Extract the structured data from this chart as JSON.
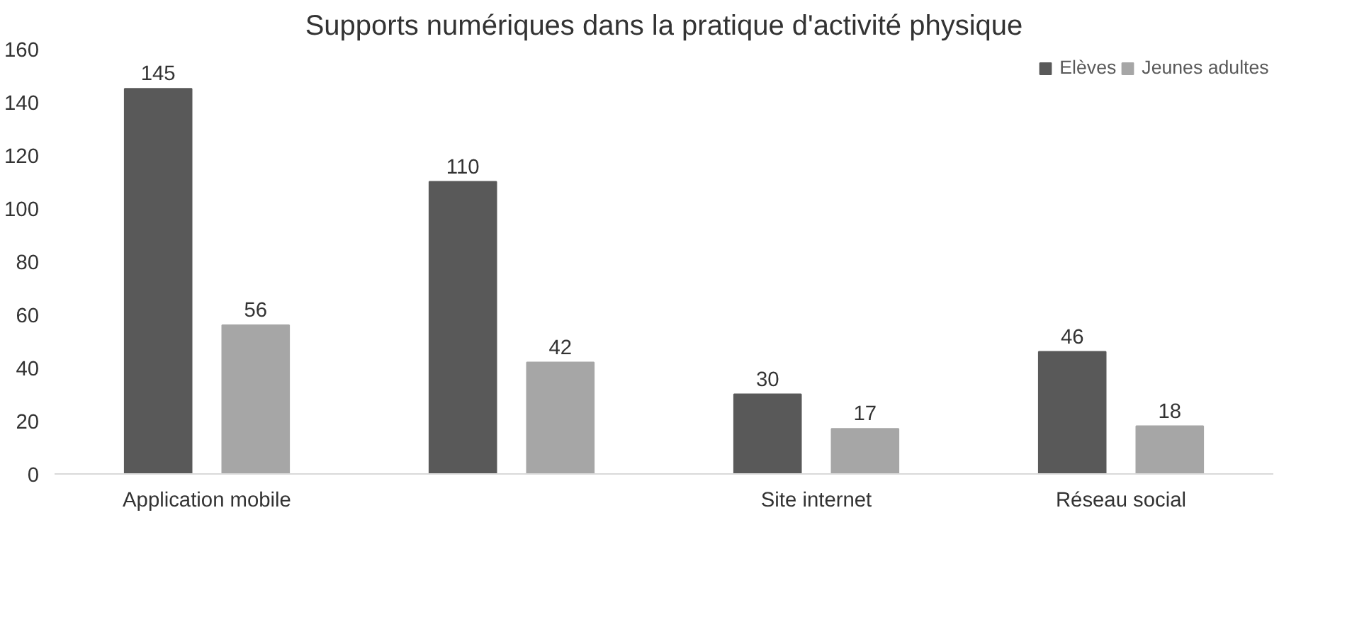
{
  "chart_data": {
    "type": "bar",
    "title": "Supports numériques dans la pratique d'activité physique",
    "categories": [
      "Application mobile",
      null,
      "Site internet",
      "Réseau social"
    ],
    "series": [
      {
        "name": "Elèves",
        "color": "#595959",
        "values": [
          145,
          110,
          30,
          46
        ]
      },
      {
        "name": "Jeunes adultes",
        "color": "#a6a6a6",
        "values": [
          56,
          42,
          17,
          18
        ]
      }
    ],
    "ylim": [
      0,
      160
    ],
    "yticks": [
      0,
      20,
      40,
      60,
      80,
      100,
      120,
      140,
      160
    ],
    "grid": false,
    "legend": "top right",
    "data_labels": true
  }
}
